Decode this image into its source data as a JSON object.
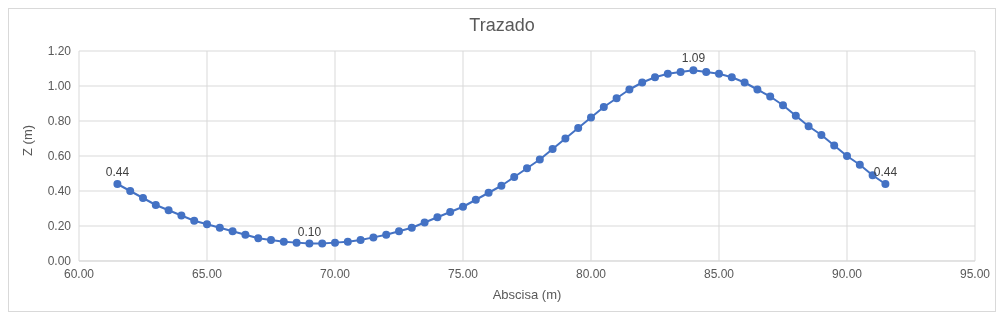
{
  "chart_data": {
    "type": "line",
    "title": "Trazado",
    "xlabel": "Abscisa (m)",
    "ylabel": "Z (m)",
    "x": [
      61.5,
      62,
      62.5,
      63,
      63.5,
      64,
      64.5,
      65,
      65.5,
      66,
      66.5,
      67,
      67.5,
      68,
      68.5,
      69,
      69.5,
      70,
      70.5,
      71,
      71.5,
      72,
      72.5,
      73,
      73.5,
      74,
      74.5,
      75,
      75.5,
      76,
      76.5,
      77,
      77.5,
      78,
      78.5,
      79,
      79.5,
      80,
      80.5,
      81,
      81.5,
      82,
      82.5,
      83,
      83.5,
      84,
      84.5,
      85,
      85.5,
      86,
      86.5,
      87,
      87.5,
      88,
      88.5,
      89,
      89.5,
      90,
      90.5,
      91,
      91.5
    ],
    "series": [
      {
        "color": "#4472c4",
        "values": [
          0.44,
          0.4,
          0.36,
          0.32,
          0.29,
          0.26,
          0.23,
          0.21,
          0.19,
          0.17,
          0.15,
          0.13,
          0.12,
          0.11,
          0.105,
          0.1,
          0.1,
          0.105,
          0.11,
          0.12,
          0.135,
          0.15,
          0.17,
          0.19,
          0.22,
          0.25,
          0.28,
          0.31,
          0.35,
          0.39,
          0.43,
          0.48,
          0.53,
          0.58,
          0.64,
          0.7,
          0.76,
          0.82,
          0.88,
          0.93,
          0.98,
          1.02,
          1.05,
          1.07,
          1.08,
          1.09,
          1.08,
          1.07,
          1.05,
          1.02,
          0.98,
          0.94,
          0.89,
          0.83,
          0.77,
          0.72,
          0.66,
          0.6,
          0.55,
          0.49,
          0.44
        ],
        "value_labels": [
          "0.44",
          null,
          null,
          null,
          null,
          null,
          null,
          null,
          null,
          null,
          null,
          null,
          null,
          null,
          null,
          "0.10",
          null,
          null,
          null,
          null,
          null,
          null,
          null,
          null,
          null,
          null,
          null,
          null,
          null,
          null,
          null,
          null,
          null,
          null,
          null,
          null,
          null,
          null,
          null,
          null,
          null,
          null,
          null,
          null,
          null,
          "1.09",
          null,
          null,
          null,
          null,
          null,
          null,
          null,
          null,
          null,
          null,
          null,
          null,
          null,
          null,
          "0.44"
        ]
      }
    ],
    "xlim": [
      60,
      95
    ],
    "xticks": [
      {
        "value": 60,
        "label": "60.00"
      },
      {
        "value": 65,
        "label": "65.00"
      },
      {
        "value": 70,
        "label": "70.00"
      },
      {
        "value": 75,
        "label": "75.00"
      },
      {
        "value": 80,
        "label": "80.00"
      },
      {
        "value": 85,
        "label": "85.00"
      },
      {
        "value": 90,
        "label": "90.00"
      },
      {
        "value": 95,
        "label": "95.00"
      }
    ],
    "ylim": [
      0,
      1.2
    ],
    "yticks": [
      {
        "value": 0,
        "label": "0.00"
      },
      {
        "value": 0.2,
        "label": "0.20"
      },
      {
        "value": 0.4,
        "label": "0.40"
      },
      {
        "value": 0.6,
        "label": "0.60"
      },
      {
        "value": 0.8,
        "label": "0.80"
      },
      {
        "value": 1,
        "label": "1.00"
      },
      {
        "value": 1.2,
        "label": "1.20"
      }
    ],
    "grid": true,
    "marker": "circle"
  }
}
